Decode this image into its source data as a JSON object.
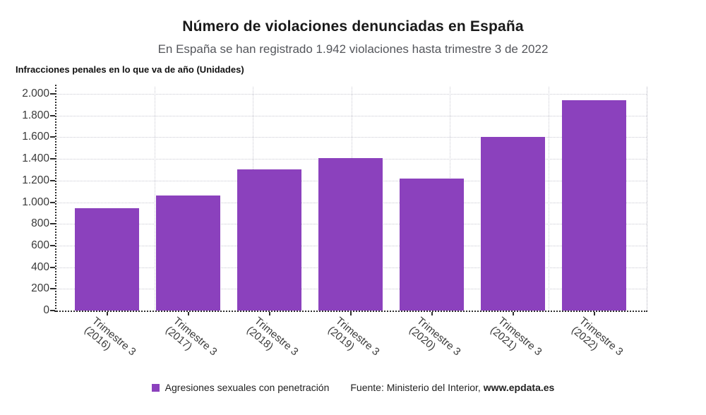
{
  "chart_data": {
    "type": "bar",
    "title": "Número de violaciones denunciadas en España",
    "subtitle": "En España se han registrado 1.942 violaciones hasta trimestre 3 de 2022",
    "units_label": "Infracciones penales en lo que va de año (Unidades)",
    "categories": [
      "Trimestre 3 (2016)",
      "Trimestre 3 (2017)",
      "Trimestre 3 (2018)",
      "Trimestre 3 (2019)",
      "Trimestre 3 (2020)",
      "Trimestre 3 (2021)",
      "Trimestre 3 (2022)"
    ],
    "category_lines": [
      [
        "Trimestre 3",
        "(2016)"
      ],
      [
        "Trimestre 3",
        "(2017)"
      ],
      [
        "Trimestre 3",
        "(2018)"
      ],
      [
        "Trimestre 3",
        "(2019)"
      ],
      [
        "Trimestre 3",
        "(2020)"
      ],
      [
        "Trimestre 3",
        "(2021)"
      ],
      [
        "Trimestre 3",
        "(2022)"
      ]
    ],
    "series": [
      {
        "name": "Agresiones sexuales con penetración",
        "values": [
          945,
          1060,
          1300,
          1405,
          1220,
          1600,
          1942
        ]
      }
    ],
    "ylim": [
      0,
      2000
    ],
    "ytick_step": 200,
    "ytick_labels": [
      "0",
      "200",
      "400",
      "600",
      "800",
      "1.000",
      "1.200",
      "1.400",
      "1.600",
      "1.800",
      "2.000"
    ],
    "grid": "dotted",
    "legend_position": "bottom",
    "source": "Fuente: Ministerio del Interior, www.epdata.es"
  },
  "legend": {
    "series_label": "Agresiones sexuales con penetración",
    "source_prefix": "Fuente: Ministerio del Interior, ",
    "source_site": "www.epdata.es"
  },
  "colors": {
    "bar": "#8b41bd",
    "grid": "#c9c9d2",
    "axis": "#2e2e2e",
    "title_text": "#191919",
    "subtitle_text": "#54565b",
    "tick_label_text": "#3a3a3a"
  }
}
